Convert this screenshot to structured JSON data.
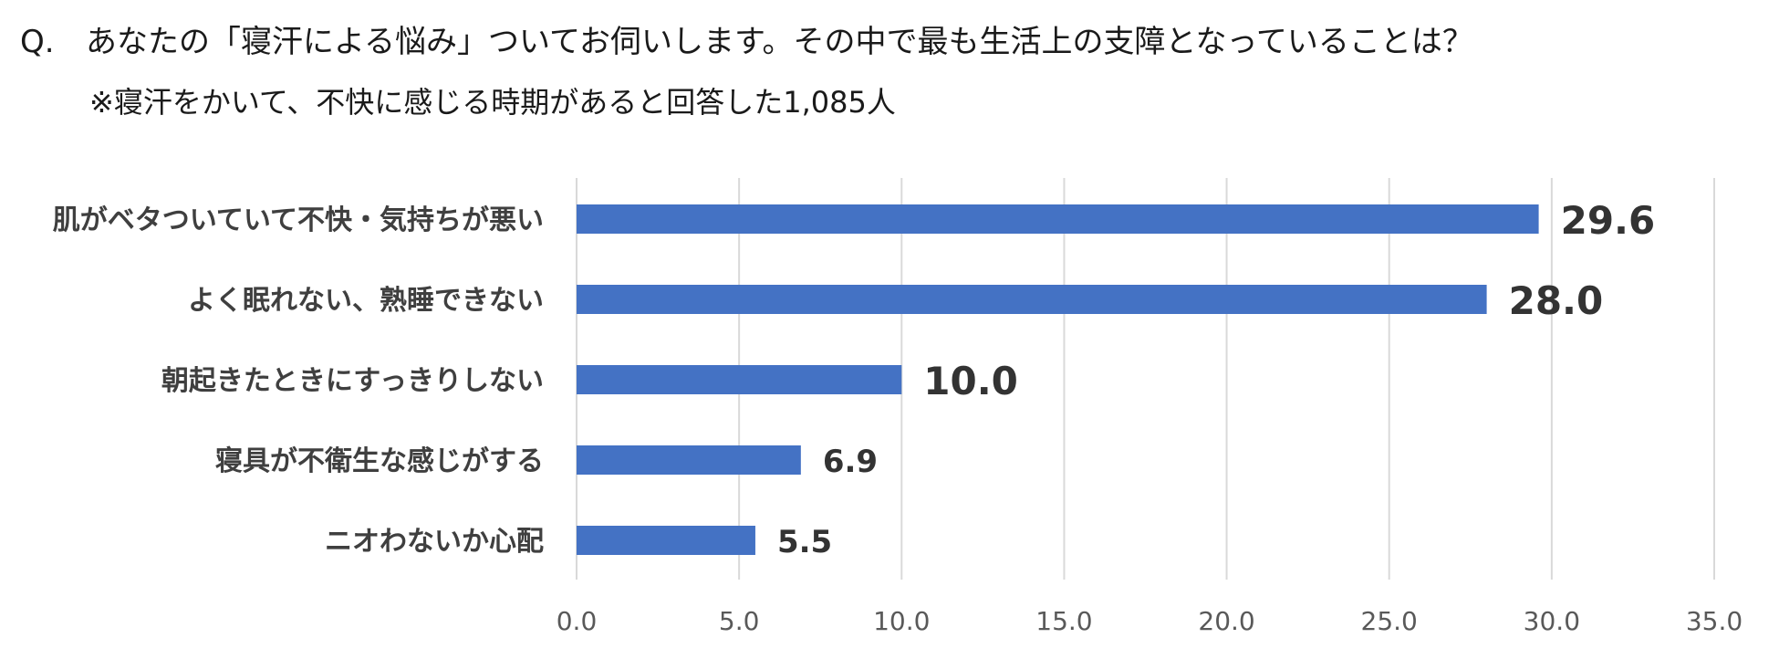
{
  "question": {
    "prefix": "Q.",
    "text": "あなたの「寝汗による悩み」ついてお伺いします。その中で最も生活上の支障となっていることは？"
  },
  "note": "※寝汗をかいて、不快に感じる時期があると回答した1,085人",
  "chart_data": {
    "type": "bar",
    "orientation": "horizontal",
    "categories": [
      "肌がベタついていて不快・気持ちが悪い",
      "よく眠れない、熟睡できない",
      "朝起きたときにすっきりしない",
      "寝具が不衛生な感じがする",
      "ニオわないか心配"
    ],
    "values": [
      29.6,
      28.0,
      10.0,
      6.9,
      5.5
    ],
    "value_labels": [
      "29.6",
      "28.0",
      "10.0",
      "6.9",
      "5.5"
    ],
    "xlim": [
      0,
      35
    ],
    "ticks": [
      "0.0",
      "5.0",
      "10.0",
      "15.0",
      "20.0",
      "25.0",
      "30.0",
      "35.0"
    ],
    "tick_values": [
      0,
      5,
      10,
      15,
      20,
      25,
      30,
      35
    ],
    "grid": "vertical",
    "bar_color": "#4472C4",
    "grid_color": "#d9d9d9"
  }
}
